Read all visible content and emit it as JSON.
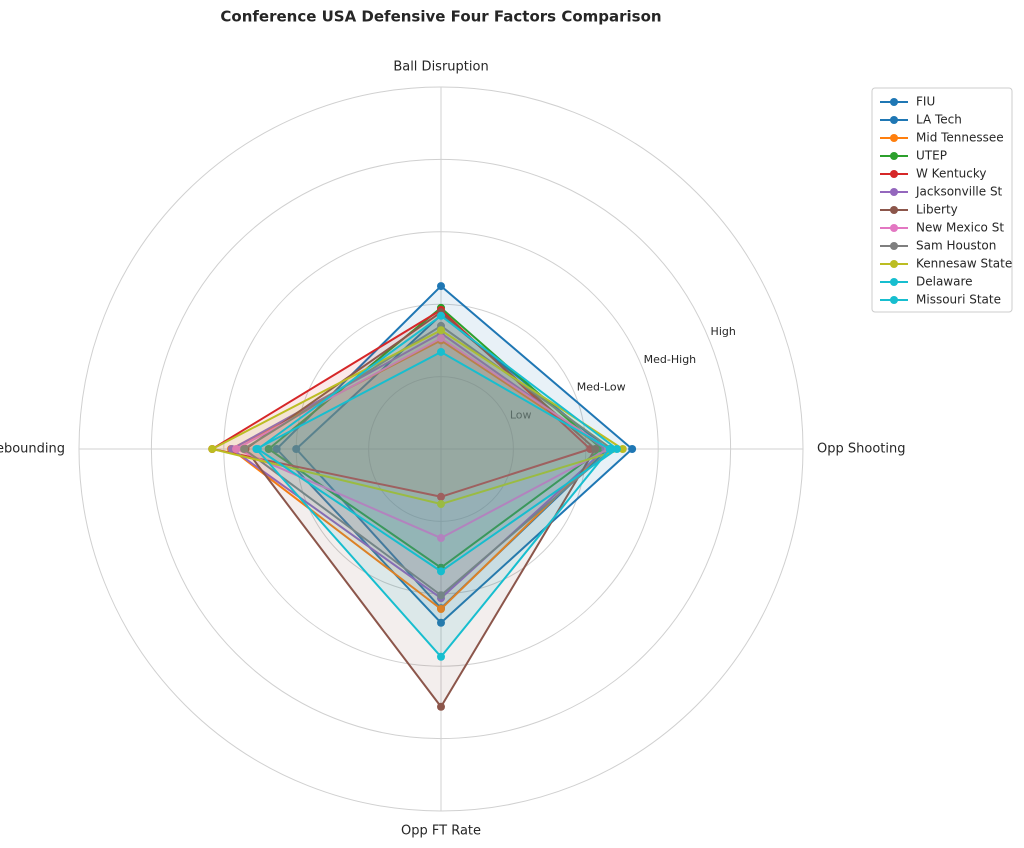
{
  "chart_data": {
    "type": "radar",
    "title": "Conference USA Defensive Four Factors Comparison",
    "categories": [
      "Ball Disruption",
      "Opp Shooting",
      "Opp FT Rate",
      "Def Rebounding"
    ],
    "ylim": [
      0,
      5
    ],
    "yticks": [
      {
        "value": 1,
        "label": "Low"
      },
      {
        "value": 2,
        "label": "Med-Low"
      },
      {
        "value": 3,
        "label": "Med-High"
      },
      {
        "value": 4,
        "label": "High"
      }
    ],
    "grid": true,
    "legend": "upper right",
    "series": [
      {
        "name": "FIU",
        "color": "#1f77b4",
        "values": [
          2.25,
          2.64,
          2.4,
          2.27
        ]
      },
      {
        "name": "LA Tech",
        "color": "#1f77b4",
        "values": [
          1.85,
          2.3,
          2.2,
          2.0
        ]
      },
      {
        "name": "Mid Tennessee",
        "color": "#ff7f0e",
        "values": [
          1.5,
          2.27,
          2.21,
          2.9
        ]
      },
      {
        "name": "UTEP",
        "color": "#2ca02c",
        "values": [
          1.95,
          2.22,
          1.64,
          2.38
        ]
      },
      {
        "name": "W Kentucky",
        "color": "#d62728",
        "values": [
          1.92,
          2.06,
          0.66,
          3.16
        ]
      },
      {
        "name": "Jacksonville St",
        "color": "#9467bd",
        "values": [
          1.6,
          2.27,
          2.06,
          2.89
        ]
      },
      {
        "name": "Liberty",
        "color": "#8c564b",
        "values": [
          1.89,
          2.13,
          3.56,
          2.7
        ]
      },
      {
        "name": "New Mexico St",
        "color": "#e377c2",
        "values": [
          1.53,
          2.31,
          1.23,
          2.83
        ]
      },
      {
        "name": "Sam Houston",
        "color": "#7f7f7f",
        "values": [
          1.7,
          2.36,
          2.02,
          2.72
        ]
      },
      {
        "name": "Kennesaw State",
        "color": "#bcbd22",
        "values": [
          1.64,
          2.51,
          0.76,
          3.16
        ]
      },
      {
        "name": "Delaware",
        "color": "#17becf",
        "values": [
          1.84,
          2.43,
          1.69,
          2.53
        ]
      },
      {
        "name": "Missouri State",
        "color": "#17becf",
        "values": [
          1.34,
          2.33,
          2.87,
          2.55
        ]
      }
    ]
  }
}
